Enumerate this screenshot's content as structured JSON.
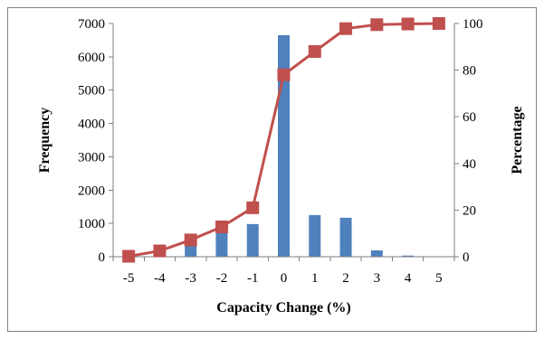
{
  "chart_data": {
    "type": "bar",
    "categories": [
      "-5",
      "-4",
      "-3",
      "-2",
      "-1",
      "0",
      "1",
      "2",
      "3",
      "4",
      "5"
    ],
    "series": [
      {
        "type": "bar",
        "axis": "left",
        "color": "#4f81bd",
        "values": [
          0,
          0,
          470,
          780,
          980,
          6650,
          1250,
          1170,
          190,
          35,
          5
        ]
      },
      {
        "type": "line",
        "axis": "right",
        "color": "#c0504d",
        "marker": "square",
        "values": [
          0.2,
          2.5,
          7.2,
          12.8,
          21,
          78,
          88,
          97.8,
          99.5,
          99.8,
          100
        ]
      }
    ],
    "xlabel": "Capacity Change (%)",
    "ylabel": "Frequency",
    "y2label": "Percentage",
    "ylim": [
      0,
      7000
    ],
    "y2lim": [
      0,
      100
    ],
    "yticks": [
      "0",
      "1000",
      "2000",
      "3000",
      "4000",
      "5000",
      "6000",
      "7000"
    ],
    "y2ticks": [
      "0",
      "20",
      "40",
      "60",
      "80",
      "100"
    ],
    "grid": false,
    "legend": "none"
  }
}
